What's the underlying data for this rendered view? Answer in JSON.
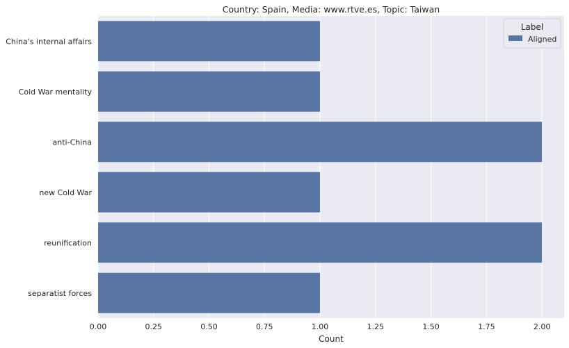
{
  "chart_data": {
    "type": "bar",
    "orientation": "horizontal",
    "title": "Country: Spain, Media: www.rtve.es, Topic: Taiwan",
    "xlabel": "Count",
    "ylabel": "",
    "categories": [
      "China's internal affairs",
      "Cold War mentality",
      "anti-China",
      "new Cold War",
      "reunification",
      "separatist forces"
    ],
    "series": [
      {
        "name": "Aligned",
        "values": [
          1,
          1,
          2,
          1,
          2,
          1
        ],
        "color": "#5975a4"
      }
    ],
    "xlim": [
      0,
      2.1
    ],
    "xticks": [
      "0.00",
      "0.25",
      "0.50",
      "0.75",
      "1.00",
      "1.25",
      "1.50",
      "1.75",
      "2.00"
    ],
    "grid": true,
    "legend": {
      "title": "Label",
      "placement": "top-right"
    },
    "colors": {
      "plot_background": "#eaeaf2",
      "grid": "#ffffff",
      "bar": "#5975a4"
    }
  }
}
